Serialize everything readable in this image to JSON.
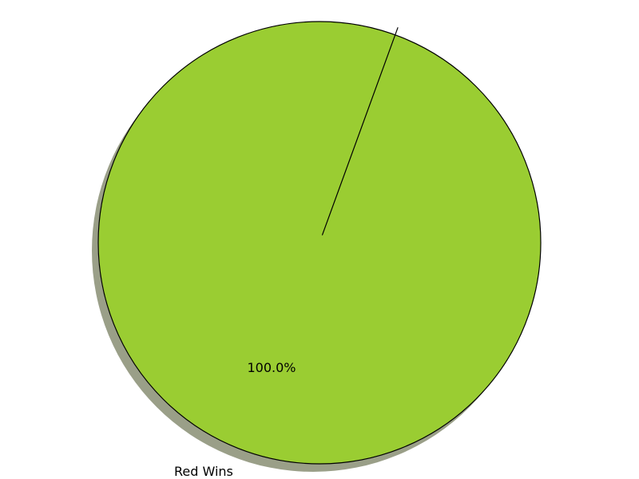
{
  "chart_data": {
    "type": "pie",
    "title": "",
    "slices": [
      {
        "label": "Red Wins",
        "value": 100,
        "percent_label": "100.0%",
        "color": "#9acd32"
      },
      {
        "label": "",
        "value": 0,
        "percent_label": "",
        "color": "#ff6666"
      }
    ],
    "shadow": true,
    "shadow_color": "#9a9f88",
    "edge_color": "#000000"
  }
}
